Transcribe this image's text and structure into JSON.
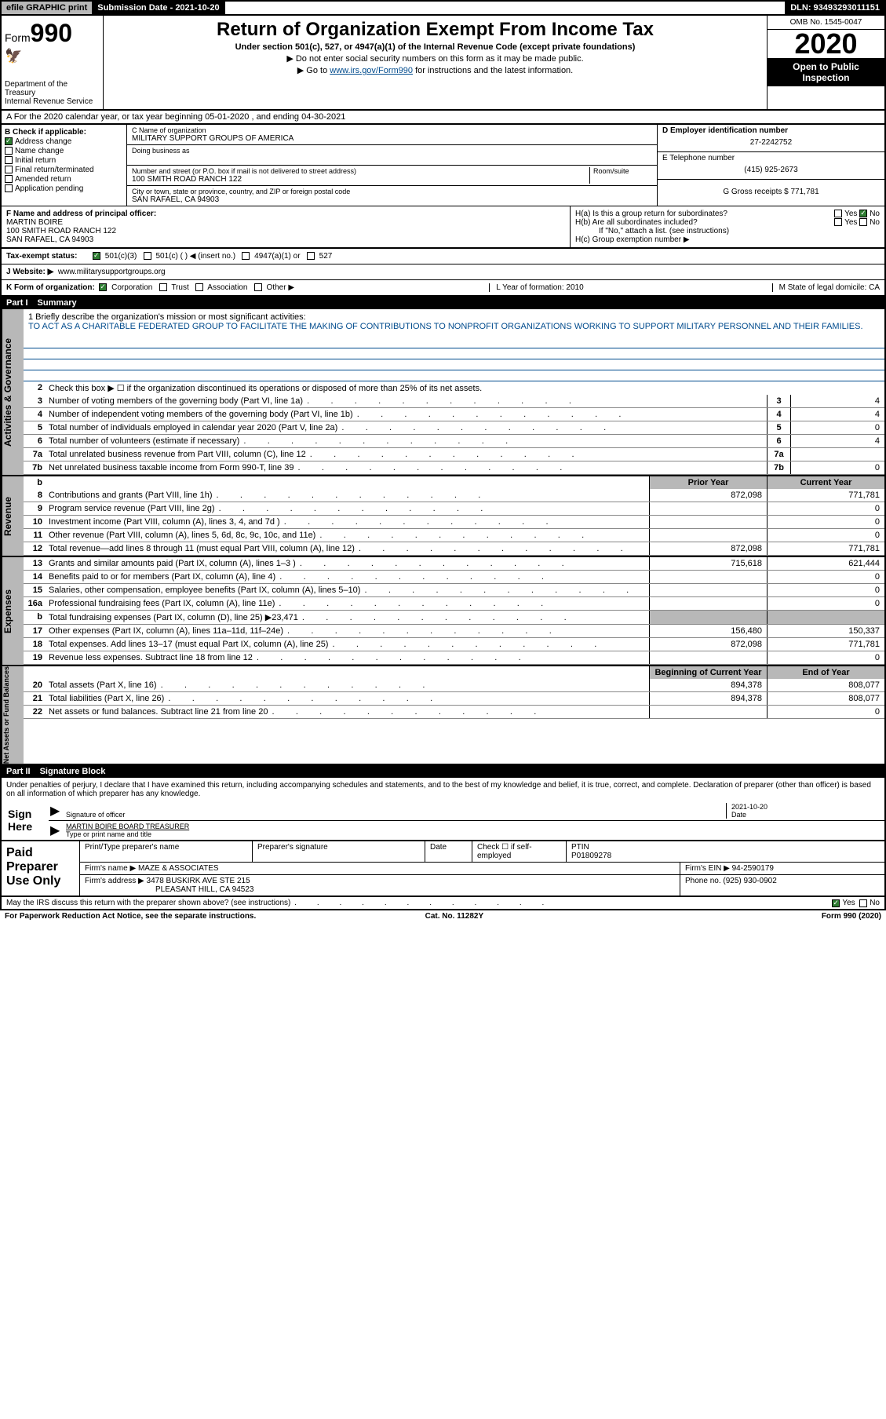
{
  "topbar": {
    "efile": "efile GRAPHIC print",
    "subdate_label": "Submission Date - 2021-10-20",
    "dln": "DLN: 93493293011151"
  },
  "header": {
    "form_label": "Form",
    "form_number": "990",
    "title": "Return of Organization Exempt From Income Tax",
    "sub1": "Under section 501(c), 527, or 4947(a)(1) of the Internal Revenue Code (except private foundations)",
    "sub2": "▶ Do not enter social security numbers on this form as it may be made public.",
    "sub3_pre": "▶ Go to ",
    "sub3_link": "www.irs.gov/Form990",
    "sub3_post": " for instructions and the latest information.",
    "dept": "Department of the Treasury\nInternal Revenue Service",
    "omb": "OMB No. 1545-0047",
    "year": "2020",
    "inspection": "Open to Public Inspection"
  },
  "row_a": "A For the 2020 calendar year, or tax year beginning 05-01-2020    , and ending 04-30-2021",
  "col_b": {
    "header": "B Check if applicable:",
    "items": [
      "Address change",
      "Name change",
      "Initial return",
      "Final return/terminated",
      "Amended return",
      "Application pending"
    ],
    "checked_idx": 0
  },
  "col_c": {
    "name_label": "C Name of organization",
    "name": "MILITARY SUPPORT GROUPS OF AMERICA",
    "dba_label": "Doing business as",
    "dba": "",
    "addr_label": "Number and street (or P.O. box if mail is not delivered to street address)",
    "room_label": "Room/suite",
    "addr": "100 SMITH ROAD RANCH 122",
    "city_label": "City or town, state or province, country, and ZIP or foreign postal code",
    "city": "SAN RAFAEL, CA  94903"
  },
  "col_de": {
    "d_label": "D Employer identification number",
    "d_val": "27-2242752",
    "e_label": "E Telephone number",
    "e_val": "(415) 925-2673",
    "g_label": "G Gross receipts $ 771,781"
  },
  "fgh": {
    "f_label": "F  Name and address of principal officer:",
    "f_val": "MARTIN BOIRE\n100 SMITH ROAD RANCH 122\nSAN RAFAEL, CA  94903",
    "h_a": "H(a)  Is this a group return for subordinates?",
    "h_b": "H(b)  Are all subordinates included?",
    "h_b_note": "If \"No,\" attach a list. (see instructions)",
    "h_c": "H(c)  Group exemption number ▶",
    "yes": "Yes",
    "no": "No"
  },
  "tax_row": {
    "label": "Tax-exempt status:",
    "opts": [
      "501(c)(3)",
      "501(c) (   ) ◀ (insert no.)",
      "4947(a)(1) or",
      "527"
    ],
    "checked_idx": 0
  },
  "website": {
    "label": "J   Website: ▶",
    "val": "www.militarysupportgroups.org"
  },
  "k_row": {
    "label": "K Form of organization:",
    "opts": [
      "Corporation",
      "Trust",
      "Association",
      "Other ▶"
    ],
    "checked_idx": 0,
    "l": "L Year of formation: 2010",
    "m": "M State of legal domicile: CA"
  },
  "part1": {
    "num": "Part I",
    "title": "Summary"
  },
  "summary": {
    "line1_label": "1  Briefly describe the organization's mission or most significant activities:",
    "line1_text": "TO ACT AS A CHARITABLE FEDERATED GROUP TO FACILITATE THE MAKING OF CONTRIBUTIONS TO NONPROFIT ORGANIZATIONS WORKING TO SUPPORT MILITARY PERSONNEL AND THEIR FAMILIES.",
    "line2": "Check this box ▶ ☐  if the organization discontinued its operations or disposed of more than 25% of its net assets.",
    "rows_ag": [
      {
        "n": "3",
        "t": "Number of voting members of the governing body (Part VI, line 1a)",
        "v": "4"
      },
      {
        "n": "4",
        "t": "Number of independent voting members of the governing body (Part VI, line 1b)",
        "v": "4"
      },
      {
        "n": "5",
        "t": "Total number of individuals employed in calendar year 2020 (Part V, line 2a)",
        "v": "0"
      },
      {
        "n": "6",
        "t": "Total number of volunteers (estimate if necessary)",
        "v": "4"
      },
      {
        "n": "7a",
        "t": "Total unrelated business revenue from Part VIII, column (C), line 12",
        "v": ""
      },
      {
        "n": "7b",
        "t": "Net unrelated business taxable income from Form 990-T, line 39",
        "v": "0"
      }
    ],
    "col_hdrs": {
      "b": "b",
      "prior": "Prior Year",
      "current": "Current Year"
    },
    "rows_rev": [
      {
        "n": "8",
        "t": "Contributions and grants (Part VIII, line 1h)",
        "p": "872,098",
        "c": "771,781"
      },
      {
        "n": "9",
        "t": "Program service revenue (Part VIII, line 2g)",
        "p": "",
        "c": "0"
      },
      {
        "n": "10",
        "t": "Investment income (Part VIII, column (A), lines 3, 4, and 7d )",
        "p": "",
        "c": "0"
      },
      {
        "n": "11",
        "t": "Other revenue (Part VIII, column (A), lines 5, 6d, 8c, 9c, 10c, and 11e)",
        "p": "",
        "c": "0"
      },
      {
        "n": "12",
        "t": "Total revenue—add lines 8 through 11 (must equal Part VIII, column (A), line 12)",
        "p": "872,098",
        "c": "771,781"
      }
    ],
    "rows_exp": [
      {
        "n": "13",
        "t": "Grants and similar amounts paid (Part IX, column (A), lines 1–3 )",
        "p": "715,618",
        "c": "621,444"
      },
      {
        "n": "14",
        "t": "Benefits paid to or for members (Part IX, column (A), line 4)",
        "p": "",
        "c": "0"
      },
      {
        "n": "15",
        "t": "Salaries, other compensation, employee benefits (Part IX, column (A), lines 5–10)",
        "p": "",
        "c": "0"
      },
      {
        "n": "16a",
        "t": "Professional fundraising fees (Part IX, column (A), line 11e)",
        "p": "",
        "c": "0"
      },
      {
        "n": "b",
        "t": "Total fundraising expenses (Part IX, column (D), line 25) ▶23,471",
        "p": "shade",
        "c": "shade"
      },
      {
        "n": "17",
        "t": "Other expenses (Part IX, column (A), lines 11a–11d, 11f–24e)",
        "p": "156,480",
        "c": "150,337"
      },
      {
        "n": "18",
        "t": "Total expenses. Add lines 13–17 (must equal Part IX, column (A), line 25)",
        "p": "872,098",
        "c": "771,781"
      },
      {
        "n": "19",
        "t": "Revenue less expenses. Subtract line 18 from line 12",
        "p": "",
        "c": "0"
      }
    ],
    "col_hdrs2": {
      "beg": "Beginning of Current Year",
      "end": "End of Year"
    },
    "rows_na": [
      {
        "n": "20",
        "t": "Total assets (Part X, line 16)",
        "p": "894,378",
        "c": "808,077"
      },
      {
        "n": "21",
        "t": "Total liabilities (Part X, line 26)",
        "p": "894,378",
        "c": "808,077"
      },
      {
        "n": "22",
        "t": "Net assets or fund balances. Subtract line 21 from line 20",
        "p": "",
        "c": "0"
      }
    ],
    "vtabs": [
      "Activities & Governance",
      "Revenue",
      "Expenses",
      "Net Assets or Fund Balances"
    ]
  },
  "part2": {
    "num": "Part II",
    "title": "Signature Block"
  },
  "sig": {
    "decl": "Under penalties of perjury, I declare that I have examined this return, including accompanying schedules and statements, and to the best of my knowledge and belief, it is true, correct, and complete. Declaration of preparer (other than officer) is based on all information of which preparer has any knowledge.",
    "sign_here": "Sign Here",
    "sig_officer": "Signature of officer",
    "date": "2021-10-20",
    "date_label": "Date",
    "name": "MARTIN BOIRE  BOARD TREASURER",
    "name_label": "Type or print name and title"
  },
  "paid": {
    "label": "Paid Preparer Use Only",
    "h1": "Print/Type preparer's name",
    "h2": "Preparer's signature",
    "h3": "Date",
    "h4": "Check ☐ if self-employed",
    "h5_label": "PTIN",
    "h5": "P01809278",
    "firm_name_label": "Firm's name    ▶",
    "firm_name": "MAZE & ASSOCIATES",
    "firm_ein_label": "Firm's EIN ▶",
    "firm_ein": "94-2590179",
    "firm_addr_label": "Firm's address ▶",
    "firm_addr": "3478 BUSKIRK AVE STE 215",
    "firm_addr2": "PLEASANT HILL, CA  94523",
    "phone_label": "Phone no.",
    "phone": "(925) 930-0902",
    "discuss": "May the IRS discuss this return with the preparer shown above? (see instructions)",
    "yes": "Yes",
    "no": "No"
  },
  "footer": {
    "left": "For Paperwork Reduction Act Notice, see the separate instructions.",
    "mid": "Cat. No. 11282Y",
    "right": "Form 990 (2020)"
  }
}
